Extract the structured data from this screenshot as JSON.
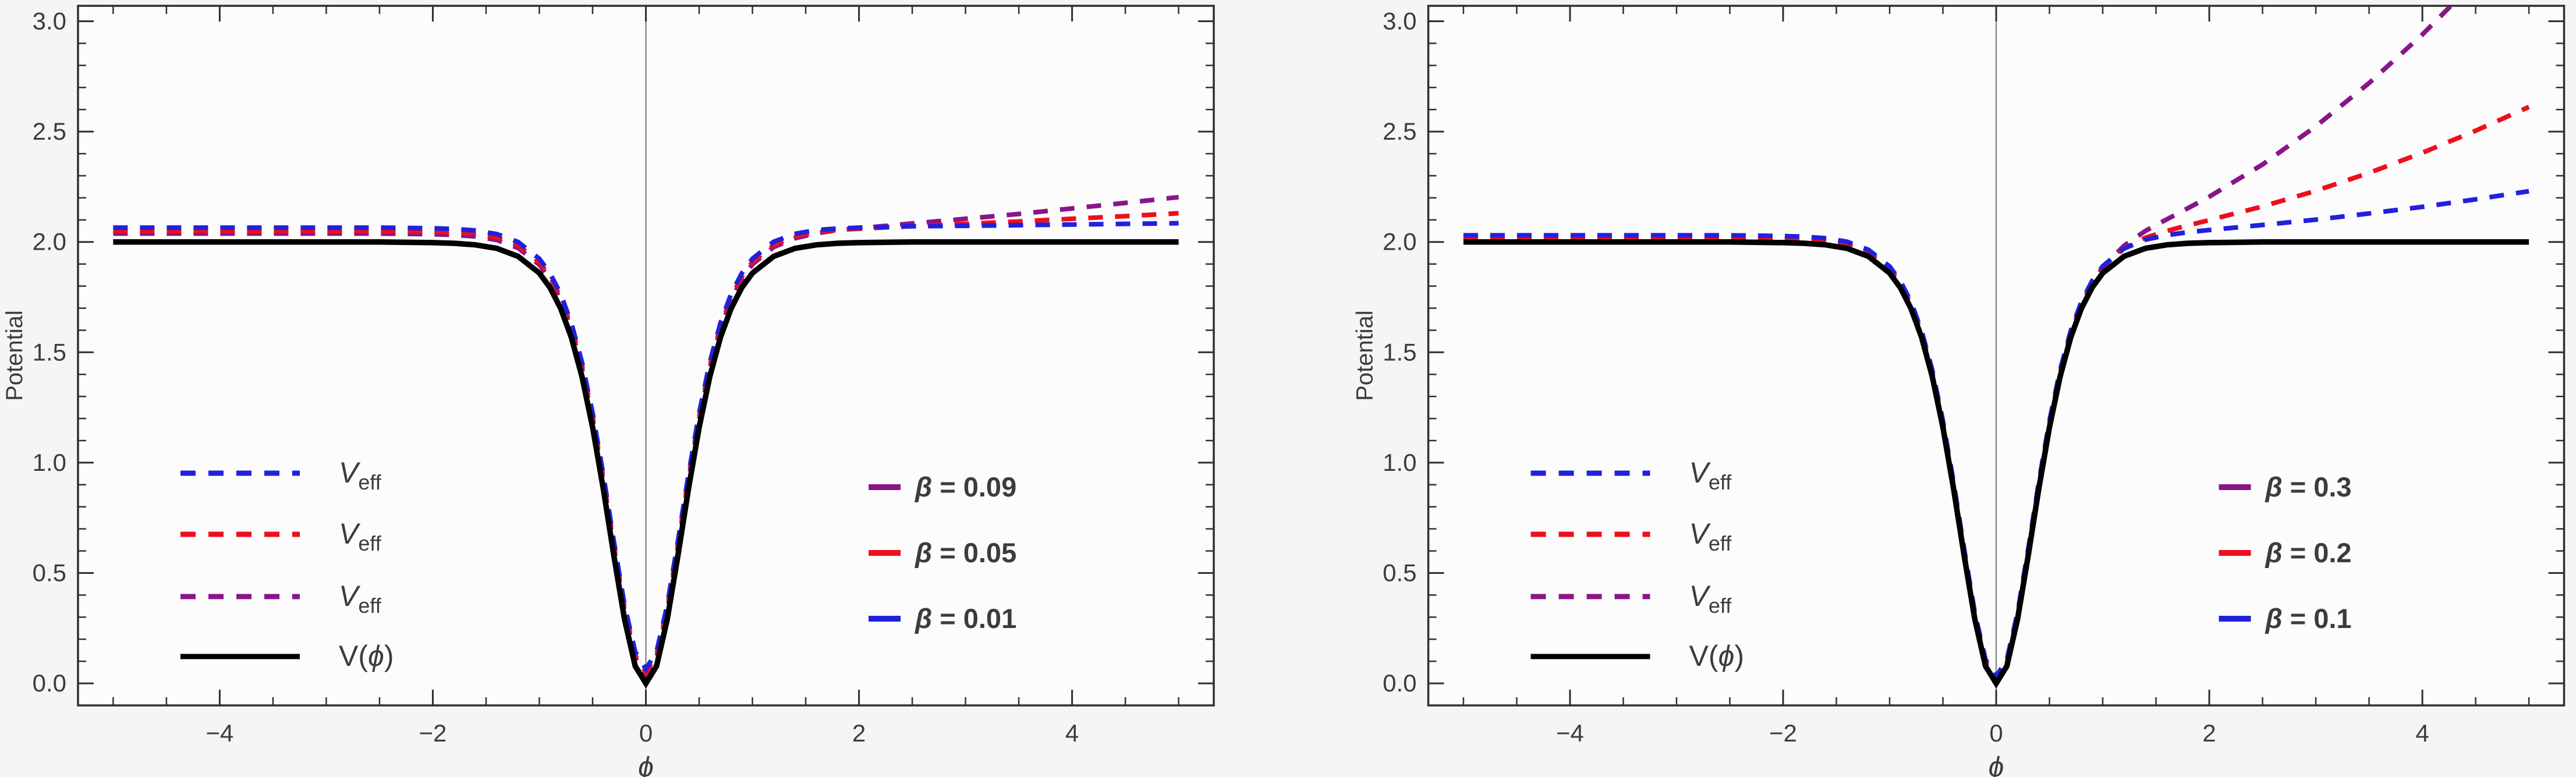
{
  "figure": {
    "background": "#f5f5f6",
    "plot_background": "#fcfcfd",
    "frame_color": "#2f2f2f",
    "tick_label_color": "#3c3c3c",
    "zero_line_color": "#8c8c8c"
  },
  "chart_data": [
    {
      "type": "line",
      "title": "",
      "xlabel": "ϕ",
      "ylabel": "Potential",
      "xlim": [
        -5.33,
        5.33
      ],
      "ylim": [
        -0.1,
        3.07
      ],
      "xticks": [
        -4,
        -2,
        0,
        2,
        4
      ],
      "xtick_labels": [
        "−4",
        "−2",
        "0",
        "2",
        "4"
      ],
      "yticks": [
        0.0,
        0.5,
        1.0,
        1.5,
        2.0,
        2.5,
        3.0
      ],
      "ytick_labels": [
        "0.0",
        "0.5",
        "1.0",
        "1.5",
        "2.0",
        "2.5",
        "3.0"
      ],
      "xtick_minor_step": 0.5,
      "ytick_minor_step": 0.1,
      "grid": "zero-vertical-line-only",
      "legend_position": "inside-lower",
      "x": [
        -5,
        -4.5,
        -4,
        -3.5,
        -3,
        -2.5,
        -2,
        -1.8,
        -1.6,
        -1.4,
        -1.2,
        -1,
        -0.9,
        -0.8,
        -0.7,
        -0.6,
        -0.5,
        -0.4,
        -0.3,
        -0.2,
        -0.1,
        0,
        0.1,
        0.2,
        0.3,
        0.4,
        0.5,
        0.6,
        0.7,
        0.8,
        0.9,
        1,
        1.2,
        1.4,
        1.6,
        1.8,
        2,
        2.5,
        3,
        3.5,
        4,
        4.5,
        5
      ],
      "series": [
        {
          "name": "V_eff (β = 0.09)",
          "color": "#8a1589",
          "style": "dashed",
          "values": [
            2.038,
            2.038,
            2.038,
            2.038,
            2.038,
            2.038,
            2.035,
            2.032,
            2.025,
            2.009,
            1.973,
            1.897,
            1.831,
            1.737,
            1.606,
            1.428,
            1.198,
            0.92,
            0.615,
            0.327,
            0.116,
            0.038,
            0.116,
            0.327,
            0.615,
            0.92,
            1.198,
            1.428,
            1.606,
            1.737,
            1.831,
            1.899,
            1.977,
            2.017,
            2.039,
            2.054,
            2.062,
            2.084,
            2.105,
            2.127,
            2.152,
            2.177,
            2.203
          ]
        },
        {
          "name": "V_eff (β = 0.05)",
          "color": "#ed0f1b",
          "style": "dashed",
          "values": [
            2.05,
            2.05,
            2.05,
            2.05,
            2.05,
            2.05,
            2.047,
            2.044,
            2.037,
            2.021,
            1.985,
            1.909,
            1.843,
            1.749,
            1.618,
            1.44,
            1.21,
            0.932,
            0.627,
            0.339,
            0.128,
            0.05,
            0.128,
            0.339,
            0.627,
            0.932,
            1.21,
            1.44,
            1.618,
            1.749,
            1.843,
            1.909,
            1.986,
            2.025,
            2.044,
            2.055,
            2.06,
            2.072,
            2.082,
            2.093,
            2.105,
            2.117,
            2.13
          ]
        },
        {
          "name": "V_eff (β = 0.01)",
          "color": "#2121dd",
          "style": "dashed",
          "values": [
            2.065,
            2.065,
            2.065,
            2.065,
            2.065,
            2.065,
            2.062,
            2.059,
            2.052,
            2.036,
            2.0,
            1.924,
            1.858,
            1.764,
            1.633,
            1.455,
            1.225,
            0.947,
            0.642,
            0.354,
            0.143,
            0.065,
            0.143,
            0.354,
            0.642,
            0.947,
            1.225,
            1.455,
            1.633,
            1.764,
            1.858,
            1.924,
            2.001,
            2.037,
            2.054,
            2.061,
            2.065,
            2.071,
            2.073,
            2.076,
            2.079,
            2.082,
            2.085
          ]
        },
        {
          "name": "V(ϕ)",
          "color": "#000000",
          "style": "solid",
          "values": [
            2,
            2,
            2,
            2,
            2,
            2,
            1.997,
            1.994,
            1.987,
            1.971,
            1.935,
            1.859,
            1.793,
            1.699,
            1.568,
            1.39,
            1.16,
            0.882,
            0.577,
            0.289,
            0.078,
            0,
            0.078,
            0.289,
            0.577,
            0.882,
            1.16,
            1.39,
            1.568,
            1.699,
            1.793,
            1.859,
            1.935,
            1.971,
            1.987,
            1.994,
            1.997,
            2,
            2,
            2,
            2,
            2,
            2
          ]
        }
      ],
      "series_legend": [
        {
          "color": "#2121dd",
          "dash": true,
          "label_main": "V",
          "label_sub": "eff"
        },
        {
          "color": "#ed0f1b",
          "dash": true,
          "label_main": "V",
          "label_sub": "eff"
        },
        {
          "color": "#8a1589",
          "dash": true,
          "label_main": "V",
          "label_sub": "eff"
        },
        {
          "color": "#000000",
          "dash": false,
          "label_main": "V(ϕ)",
          "label_sub": ""
        }
      ],
      "param_legend": [
        {
          "color": "#8a1589",
          "symbol": "β",
          "text": " = 0.09"
        },
        {
          "color": "#ed0f1b",
          "symbol": "β",
          "text": " = 0.05"
        },
        {
          "color": "#2121dd",
          "symbol": "β",
          "text": " = 0.01"
        }
      ]
    },
    {
      "type": "line",
      "title": "",
      "xlabel": "ϕ",
      "ylabel": "Potential",
      "xlim": [
        -5.33,
        5.33
      ],
      "ylim": [
        -0.1,
        3.07
      ],
      "xticks": [
        -4,
        -2,
        0,
        2,
        4
      ],
      "xtick_labels": [
        "−4",
        "−2",
        "0",
        "2",
        "4"
      ],
      "yticks": [
        0.0,
        0.5,
        1.0,
        1.5,
        2.0,
        2.5,
        3.0
      ],
      "ytick_labels": [
        "0.0",
        "0.5",
        "1.0",
        "1.5",
        "2.0",
        "2.5",
        "3.0"
      ],
      "xtick_minor_step": 0.5,
      "ytick_minor_step": 0.1,
      "grid": "zero-vertical-line-only",
      "legend_position": "inside-lower",
      "x": [
        -5,
        -4.5,
        -4,
        -3.5,
        -3,
        -2.5,
        -2,
        -1.8,
        -1.6,
        -1.4,
        -1.2,
        -1,
        -0.9,
        -0.8,
        -0.7,
        -0.6,
        -0.5,
        -0.4,
        -0.3,
        -0.2,
        -0.1,
        0,
        0.1,
        0.2,
        0.3,
        0.4,
        0.5,
        0.6,
        0.7,
        0.8,
        0.9,
        1,
        1.2,
        1.4,
        1.6,
        1.8,
        2,
        2.5,
        3,
        3.5,
        4,
        4.5,
        5
      ],
      "series": [
        {
          "name": "V_eff (β = 0.3)",
          "color": "#8a1589",
          "style": "dashed",
          "values": [
            2.015,
            2.015,
            2.015,
            2.015,
            2.015,
            2.015,
            2.012,
            2.009,
            2.002,
            1.986,
            1.95,
            1.874,
            1.808,
            1.714,
            1.583,
            1.405,
            1.175,
            0.897,
            0.592,
            0.304,
            0.093,
            0.015,
            0.093,
            0.304,
            0.592,
            0.897,
            1.175,
            1.405,
            1.583,
            1.714,
            1.808,
            1.885,
            1.983,
            2.05,
            2.102,
            2.153,
            2.205,
            2.351,
            2.524,
            2.72,
            2.94,
            3.183,
            3.445
          ]
        },
        {
          "name": "V_eff (β = 0.2)",
          "color": "#ed0f1b",
          "style": "dashed",
          "values": [
            2.022,
            2.022,
            2.022,
            2.022,
            2.022,
            2.022,
            2.019,
            2.016,
            2.009,
            1.993,
            1.957,
            1.881,
            1.815,
            1.721,
            1.59,
            1.412,
            1.182,
            0.904,
            0.599,
            0.311,
            0.1,
            0.022,
            0.1,
            0.311,
            0.599,
            0.904,
            1.182,
            1.412,
            1.59,
            1.721,
            1.815,
            1.886,
            1.971,
            2.019,
            2.05,
            2.075,
            2.099,
            2.161,
            2.232,
            2.313,
            2.404,
            2.504,
            2.612
          ]
        },
        {
          "name": "V_eff (β = 0.1)",
          "color": "#2121dd",
          "style": "dashed",
          "values": [
            2.03,
            2.03,
            2.03,
            2.03,
            2.03,
            2.03,
            2.027,
            2.024,
            2.017,
            2.001,
            1.965,
            1.889,
            1.823,
            1.729,
            1.598,
            1.42,
            1.19,
            0.912,
            0.607,
            0.319,
            0.108,
            0.03,
            0.108,
            0.319,
            0.607,
            0.912,
            1.19,
            1.42,
            1.598,
            1.729,
            1.823,
            1.89,
            1.97,
            2.01,
            2.031,
            2.044,
            2.054,
            2.077,
            2.101,
            2.129,
            2.159,
            2.193,
            2.23
          ]
        },
        {
          "name": "V(ϕ)",
          "color": "#000000",
          "style": "solid",
          "values": [
            2,
            2,
            2,
            2,
            2,
            2,
            1.997,
            1.994,
            1.987,
            1.971,
            1.935,
            1.859,
            1.793,
            1.699,
            1.568,
            1.39,
            1.16,
            0.882,
            0.577,
            0.289,
            0.078,
            0,
            0.078,
            0.289,
            0.577,
            0.882,
            1.16,
            1.39,
            1.568,
            1.699,
            1.793,
            1.859,
            1.935,
            1.971,
            1.987,
            1.994,
            1.997,
            2,
            2,
            2,
            2,
            2,
            2
          ]
        }
      ],
      "series_legend": [
        {
          "color": "#2121dd",
          "dash": true,
          "label_main": "V",
          "label_sub": "eff"
        },
        {
          "color": "#ed0f1b",
          "dash": true,
          "label_main": "V",
          "label_sub": "eff"
        },
        {
          "color": "#8a1589",
          "dash": true,
          "label_main": "V",
          "label_sub": "eff"
        },
        {
          "color": "#000000",
          "dash": false,
          "label_main": "V(ϕ)",
          "label_sub": ""
        }
      ],
      "param_legend": [
        {
          "color": "#8a1589",
          "symbol": "β",
          "text": " = 0.3"
        },
        {
          "color": "#ed0f1b",
          "symbol": "β",
          "text": " = 0.2"
        },
        {
          "color": "#2121dd",
          "symbol": "β",
          "text": " = 0.1"
        }
      ]
    }
  ]
}
